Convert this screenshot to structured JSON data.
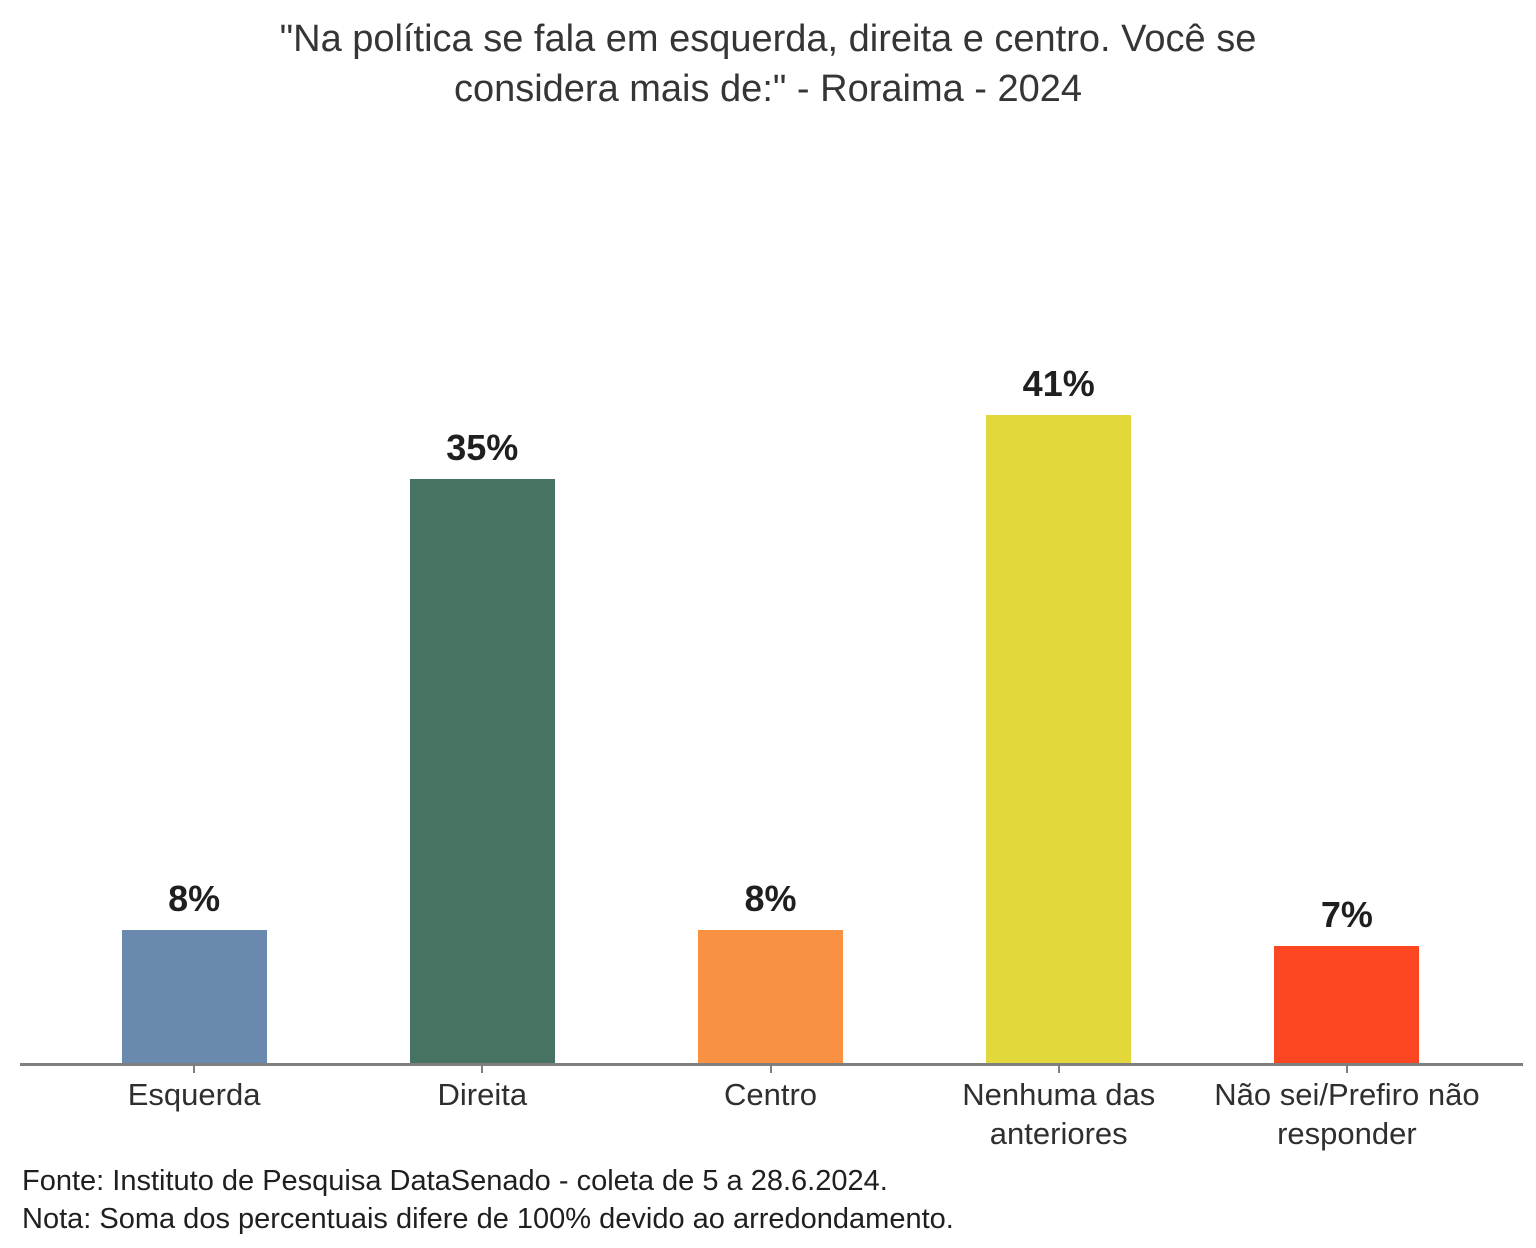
{
  "page": {
    "title": "\"Na política se fala em esquerda, direita e centro. Você se\nconsidera mais de:\" - Roraima - 2024",
    "footer": {
      "fonte": "Fonte: Instituto de Pesquisa DataSenado - coleta de 5 a 28.6.2024.",
      "nota": "Nota: Soma dos percentuais difere de 100% devido ao arredondamento."
    }
  },
  "chart_data": {
    "type": "bar",
    "title": "\"Na política se fala em esquerda, direita e centro. Você se considera mais de:\" - Roraima - 2024",
    "categories": [
      "Esquerda",
      "Direita",
      "Centro",
      "Nenhuma das\nanteriores",
      "Não sei/Prefiro não\nresponder"
    ],
    "values": [
      8,
      35,
      8,
      41,
      7
    ],
    "data_labels": [
      "8%",
      "35%",
      "8%",
      "41%",
      "7%"
    ],
    "colors": [
      "#6989AE",
      "#477363",
      "#F89242",
      "#E2D83B",
      "#FB4721"
    ],
    "xlabel": "",
    "ylabel": "",
    "ylim": [
      0,
      41
    ],
    "grid": false,
    "legend": false,
    "axis_line_color": "#7F7F7F",
    "value_label_color": "#1F1F1F",
    "source_note": "Fonte: Instituto de Pesquisa DataSenado - coleta de 5 a 28.6.2024.",
    "rounding_note": "Nota: Soma dos percentuais difere de 100% devido ao arredondamento."
  }
}
